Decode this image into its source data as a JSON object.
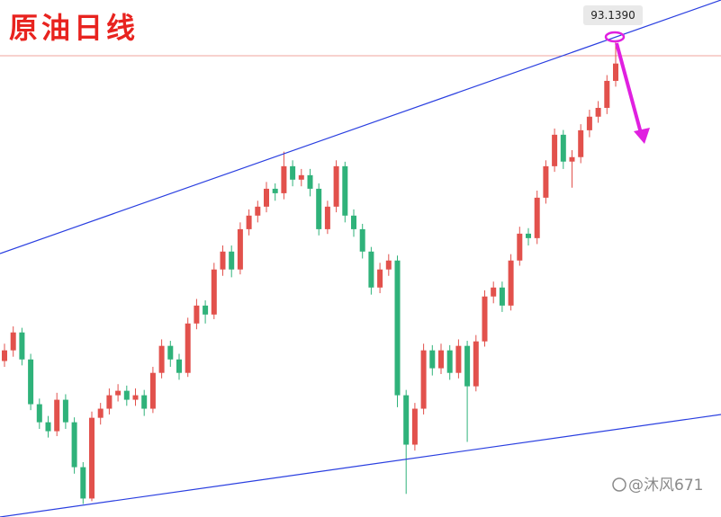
{
  "chart_data": {
    "type": "candlestick",
    "title": "原油日线",
    "up_color": "#e2514c",
    "down_color": "#2fb27a",
    "ylim": [
      61.2,
      97.0
    ],
    "price_label": {
      "value": 93.139,
      "label": "93.1390"
    },
    "watermark": "@沐风671",
    "open": [
      72.0,
      72.74,
      73.98,
      72.11,
      69.01,
      67.76,
      67.14,
      69.32,
      67.76,
      64.65,
      62.48,
      68.07,
      68.7,
      69.63,
      69.94,
      69.32,
      69.63,
      68.7,
      71.18,
      73.05,
      72.11,
      71.18,
      74.6,
      75.84,
      75.22,
      78.34,
      79.58,
      78.34,
      81.13,
      82.07,
      82.69,
      83.93,
      83.62,
      85.49,
      84.56,
      84.87,
      83.93,
      81.13,
      82.69,
      85.49,
      82.07,
      81.13,
      79.58,
      77.09,
      78.34,
      78.96,
      69.63,
      66.21,
      68.7,
      72.74,
      71.5,
      72.74,
      71.18,
      73.05,
      70.25,
      73.36,
      76.47,
      77.09,
      75.84,
      78.96,
      80.82,
      80.51,
      83.31,
      85.49,
      87.67,
      85.81,
      86.12,
      87.98,
      88.92,
      89.53,
      91.4
    ],
    "high": [
      73.2,
      74.4,
      74.3,
      72.5,
      69.4,
      68.2,
      69.8,
      69.7,
      68.1,
      65.0,
      68.5,
      69.1,
      70.1,
      70.4,
      70.3,
      70.1,
      70.0,
      71.6,
      73.5,
      73.4,
      72.5,
      75.0,
      76.3,
      76.2,
      78.8,
      80.0,
      80.0,
      81.6,
      82.5,
      83.1,
      84.4,
      84.3,
      86.5,
      85.9,
      85.3,
      85.3,
      84.3,
      83.1,
      85.9,
      85.8,
      82.5,
      81.5,
      79.9,
      78.8,
      79.4,
      79.3,
      70.0,
      69.1,
      73.2,
      73.1,
      73.2,
      73.1,
      73.5,
      73.4,
      73.8,
      76.9,
      77.5,
      77.5,
      79.4,
      81.3,
      81.2,
      83.8,
      85.9,
      88.1,
      88.0,
      86.6,
      88.4,
      89.4,
      90.0,
      91.8,
      94.2
    ],
    "low": [
      71.6,
      72.3,
      71.7,
      68.6,
      67.3,
      66.7,
      66.8,
      67.3,
      64.2,
      62.1,
      62.3,
      67.6,
      68.3,
      69.2,
      68.9,
      68.9,
      68.2,
      68.4,
      70.8,
      71.6,
      70.7,
      70.9,
      74.2,
      74.6,
      74.9,
      77.9,
      77.8,
      78.0,
      80.7,
      81.6,
      82.3,
      83.1,
      83.2,
      84.1,
      84.1,
      83.4,
      80.7,
      80.8,
      82.3,
      81.6,
      80.6,
      79.1,
      76.6,
      76.7,
      77.9,
      68.8,
      62.8,
      65.8,
      68.3,
      71.0,
      71.1,
      70.7,
      70.8,
      66.4,
      69.9,
      73.0,
      76.0,
      75.4,
      75.5,
      78.6,
      80.0,
      80.1,
      82.9,
      85.1,
      85.3,
      84.0,
      85.7,
      87.5,
      88.5,
      89.1,
      91.0
    ],
    "close": [
      72.74,
      73.98,
      72.11,
      69.01,
      67.76,
      67.14,
      69.32,
      67.76,
      64.65,
      62.48,
      68.07,
      68.7,
      69.63,
      69.94,
      69.32,
      69.63,
      68.7,
      71.18,
      73.05,
      72.11,
      71.18,
      74.6,
      75.84,
      75.22,
      78.34,
      79.58,
      78.34,
      81.13,
      82.07,
      82.69,
      83.93,
      83.62,
      85.49,
      84.56,
      84.87,
      83.93,
      81.13,
      82.69,
      85.49,
      82.07,
      81.13,
      79.58,
      77.09,
      78.34,
      78.96,
      69.63,
      66.21,
      68.7,
      72.74,
      71.5,
      72.74,
      71.18,
      73.05,
      70.25,
      73.36,
      76.47,
      77.09,
      75.84,
      78.96,
      80.82,
      80.51,
      83.31,
      85.49,
      87.67,
      85.81,
      86.12,
      87.98,
      88.92,
      89.53,
      91.4,
      92.6
    ]
  }
}
